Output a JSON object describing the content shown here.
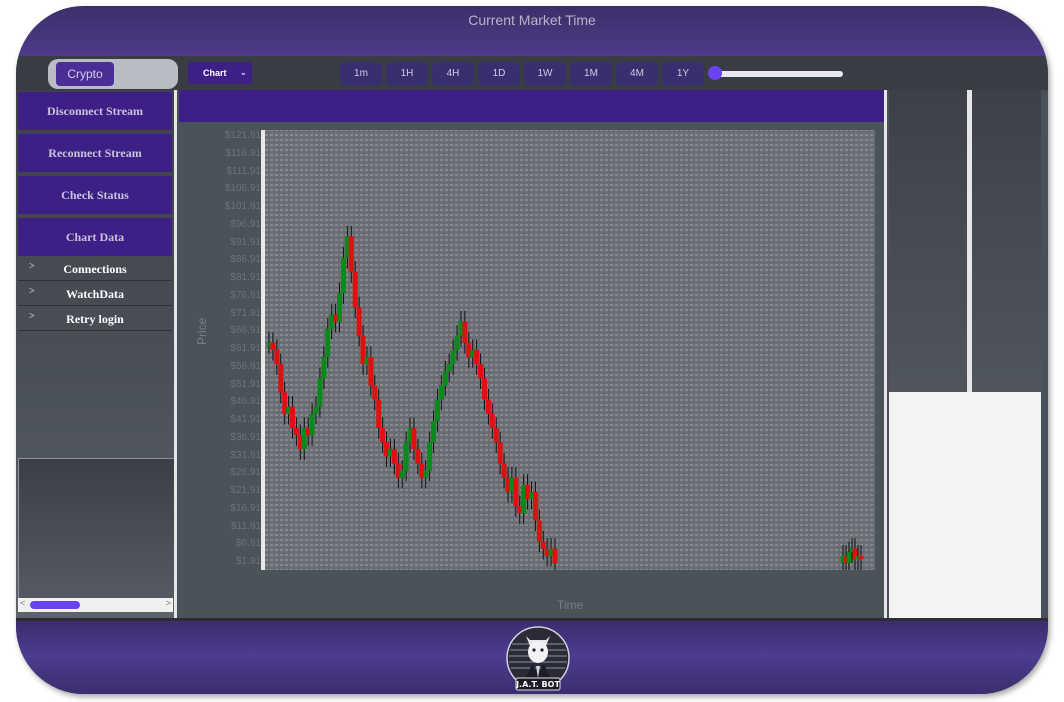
{
  "window": {
    "title": "Current Market Time"
  },
  "toolbar": {
    "crypto_label": "Crypto",
    "chart_type_label": "Chart",
    "timeframes": [
      "1m",
      "1H",
      "4H",
      "1D",
      "1W",
      "1M",
      "4M",
      "1Y"
    ],
    "accent_color": "#6a42f0"
  },
  "sidebar": {
    "buttons": [
      "Disconnect Stream",
      "Reconnect Stream",
      "Check Status",
      "Chart Data"
    ],
    "tree": [
      "Connections",
      "WatchData",
      "Retry login"
    ]
  },
  "logo": {
    "text": "J.A.T. BOT"
  },
  "chart_data": {
    "type": "candlestick",
    "xlabel": "Time",
    "ylabel": "Price",
    "yticks": [
      "$121.91",
      "$116.91",
      "$111.91",
      "$106.91",
      "$101.91",
      "$96.91",
      "$91.91",
      "$86.91",
      "$81.91",
      "$76.91",
      "$71.91",
      "$66.91",
      "$61.91",
      "$56.91",
      "$51.91",
      "$46.91",
      "$41.91",
      "$36.91",
      "$31.91",
      "$26.91",
      "$21.91",
      "$16.91",
      "$11.91",
      "$6.91",
      "$1.91"
    ],
    "ylim": [
      0,
      124
    ],
    "grid": true,
    "up_color": "#0a8a1a",
    "down_color": "#e01010",
    "close": [
      64,
      62,
      58,
      50,
      44,
      46,
      40,
      38,
      34,
      40,
      38,
      44,
      46,
      54,
      60,
      68,
      72,
      70,
      78,
      88,
      94,
      84,
      74,
      66,
      58,
      60,
      52,
      48,
      40,
      36,
      32,
      34,
      30,
      26,
      28,
      36,
      40,
      34,
      30,
      26,
      28,
      36,
      42,
      48,
      52,
      56,
      58,
      62,
      66,
      70,
      64,
      60,
      62,
      58,
      54,
      48,
      44,
      40,
      36,
      30,
      26,
      22,
      26,
      18,
      16,
      24,
      20,
      22,
      14,
      8,
      6,
      4,
      6,
      2,
      4,
      2,
      5,
      6,
      3,
      4,
      3
    ]
  }
}
